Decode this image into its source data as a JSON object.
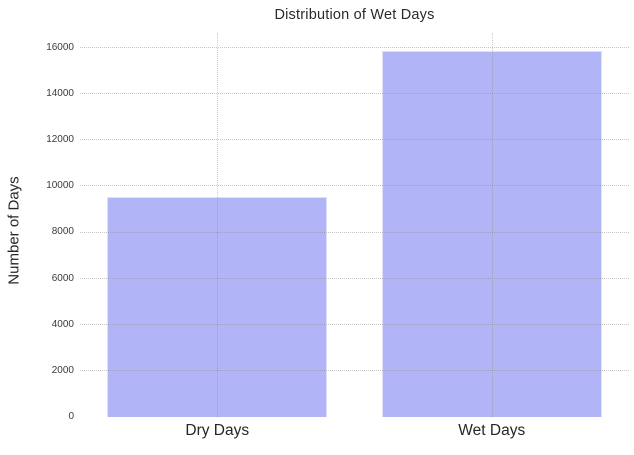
{
  "chart_data": {
    "type": "bar",
    "title": "Distribution of Wet Days",
    "xlabel": "",
    "ylabel": "Number of Days",
    "categories": [
      "Dry Days",
      "Wet Days"
    ],
    "values": [
      9550,
      15860
    ],
    "yticks": [
      0,
      2000,
      4000,
      6000,
      8000,
      10000,
      12000,
      14000,
      16000
    ],
    "ylim": [
      0,
      16650
    ],
    "grid": "dotted, horizontal and vertical, drawn over bars",
    "legend": "none",
    "colors": {
      "bar_fill": "#b1b4f7",
      "bar_edge": "#dddffb",
      "grid": "#828282",
      "title_text": "#2a2a2a",
      "tick_text": "#3b3b3b",
      "background": "#ffffff"
    }
  }
}
